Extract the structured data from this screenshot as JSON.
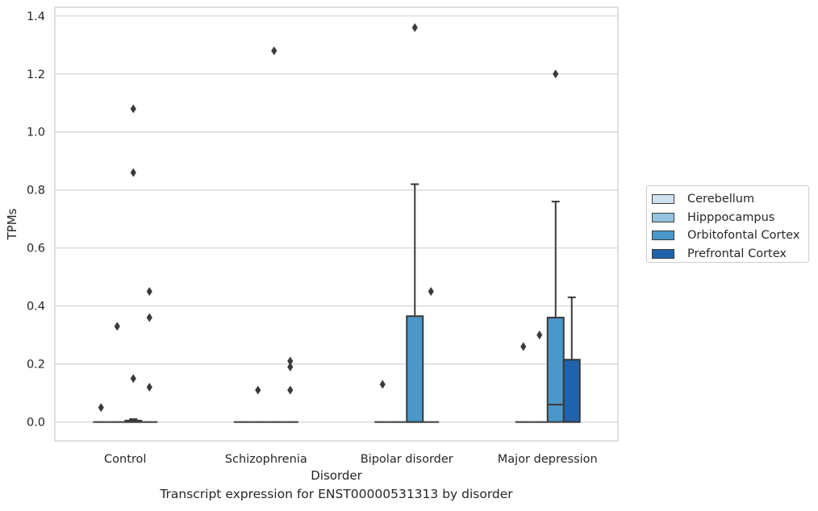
{
  "chart_data": {
    "type": "box",
    "xlabel": "Disorder",
    "ylabel": "TPMs",
    "ylim": [
      -0.065,
      1.43
    ],
    "yticks": [
      "0.0",
      "0.2",
      "0.4",
      "0.6",
      "0.8",
      "1.0",
      "1.2",
      "1.4"
    ],
    "ytick_values": [
      0.0,
      0.2,
      0.4,
      0.6,
      0.8,
      1.0,
      1.2,
      1.4
    ],
    "grid": true,
    "legend_placement": "right",
    "categories": [
      "Control",
      "Schizophrenia",
      "Bipolar disorder",
      "Major depression"
    ],
    "series": [
      {
        "name": "Cerebellum",
        "color": "#d0e1f2",
        "boxes": [
          {
            "q1": 0,
            "median": 0,
            "q3": 0,
            "whisker_low": 0,
            "whisker_high": 0,
            "outliers": [
              0.05
            ]
          },
          {
            "q1": 0,
            "median": 0,
            "q3": 0,
            "whisker_low": 0,
            "whisker_high": 0,
            "outliers": []
          },
          {
            "q1": 0,
            "median": 0,
            "q3": 0,
            "whisker_low": 0,
            "whisker_high": 0,
            "outliers": [
              0.13
            ]
          },
          {
            "q1": 0,
            "median": 0,
            "q3": 0,
            "whisker_low": 0,
            "whisker_high": 0,
            "outliers": [
              0.26
            ]
          }
        ]
      },
      {
        "name": "Hipppocampus",
        "color": "#94c4df",
        "boxes": [
          {
            "q1": 0,
            "median": 0,
            "q3": 0,
            "whisker_low": 0,
            "whisker_high": 0,
            "outliers": [
              0.33
            ]
          },
          {
            "q1": 0,
            "median": 0,
            "q3": 0,
            "whisker_low": 0,
            "whisker_high": 0,
            "outliers": [
              0.11
            ]
          },
          {
            "q1": 0,
            "median": 0,
            "q3": 0,
            "whisker_low": 0,
            "whisker_high": 0,
            "outliers": []
          },
          {
            "q1": 0,
            "median": 0,
            "q3": 0,
            "whisker_low": 0,
            "whisker_high": 0,
            "outliers": [
              0.3
            ]
          }
        ]
      },
      {
        "name": "Orbitofontal Cortex",
        "color": "#4a98c9",
        "boxes": [
          {
            "q1": 0,
            "median": 0,
            "q3": 0.005,
            "whisker_low": 0,
            "whisker_high": 0.01,
            "outliers": [
              0.15,
              0.86,
              1.08
            ]
          },
          {
            "q1": 0,
            "median": 0,
            "q3": 0,
            "whisker_low": 0,
            "whisker_high": 0,
            "outliers": [
              1.28
            ]
          },
          {
            "q1": 0,
            "median": 0,
            "q3": 0.365,
            "whisker_low": 0,
            "whisker_high": 0.82,
            "outliers": [
              1.36
            ]
          },
          {
            "q1": 0,
            "median": 0.06,
            "q3": 0.36,
            "whisker_low": 0,
            "whisker_high": 0.76,
            "outliers": [
              1.2
            ]
          }
        ]
      },
      {
        "name": "Prefrontal Cortex",
        "color": "#2163aa",
        "boxes": [
          {
            "q1": 0,
            "median": 0,
            "q3": 0,
            "whisker_low": 0,
            "whisker_high": 0,
            "outliers": [
              0.12,
              0.36,
              0.45
            ]
          },
          {
            "q1": 0,
            "median": 0,
            "q3": 0,
            "whisker_low": 0,
            "whisker_high": 0,
            "outliers": [
              0.11,
              0.19,
              0.21
            ]
          },
          {
            "q1": 0,
            "median": 0,
            "q3": 0,
            "whisker_low": 0,
            "whisker_high": 0,
            "outliers": [
              0.45
            ]
          },
          {
            "q1": 0,
            "median": 0,
            "q3": 0.215,
            "whisker_low": 0,
            "whisker_high": 0.43,
            "outliers": []
          }
        ]
      }
    ]
  },
  "caption": "Transcript expression for ENST00000531313 by disorder"
}
